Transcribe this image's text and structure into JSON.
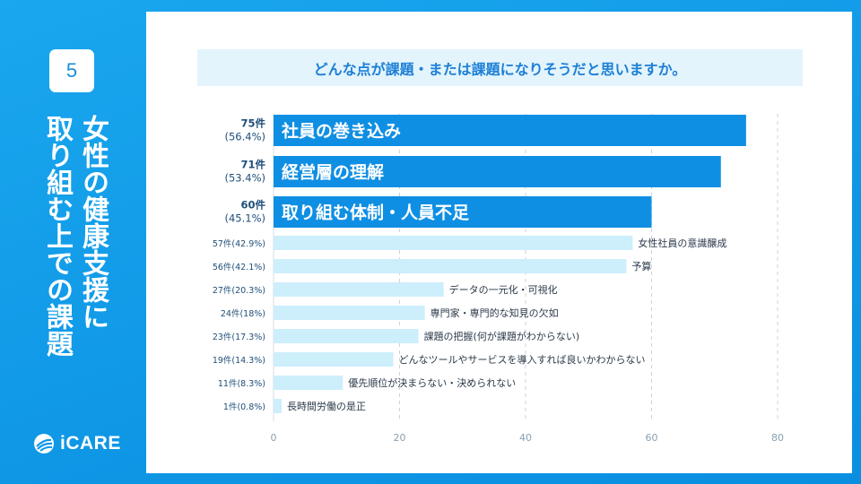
{
  "slide": {
    "number": "5",
    "title_col1": "女性の健康支援に",
    "title_col2": "取り組む上での課題"
  },
  "logo": {
    "text": "iCARE"
  },
  "question": "どんな点が課題・または課題になりそうだと思いますか。",
  "colors": {
    "background": "#0f9ae8",
    "accent_bar": "#0f8fe3",
    "light_bar": "#cdeefb",
    "question_bg": "#e3f4fc",
    "question_text": "#1d7fd6",
    "axis_text": "#8aa0b2",
    "label_text": "#1f4e79"
  },
  "chart_data": {
    "type": "bar",
    "orientation": "horizontal",
    "title": "どんな点が課題・または課題になりそうだと思いますか。",
    "xlim": [
      0,
      80
    ],
    "xticks": [
      0,
      20,
      40,
      60,
      80
    ],
    "grid": true,
    "categories": [
      "社員の巻き込み",
      "経営層の理解",
      "取り組む体制・人員不足",
      "女性社員の意識醸成",
      "予算",
      "データの一元化・可視化",
      "専門家・専門的な知見の欠如",
      "課題の把握(何が課題がわからない)",
      "どんなツールやサービスを導入すれば良いかわからない",
      "優先順位が決まらない・決められない",
      "長時間労働の是正"
    ],
    "values": [
      75,
      71,
      60,
      57,
      56,
      27,
      24,
      23,
      19,
      11,
      1
    ],
    "count_labels": [
      "75件",
      "71件",
      "60件",
      "57件",
      "56件",
      "27件",
      "24件",
      "23件",
      "19件",
      "11件",
      "1件"
    ],
    "percent_labels": [
      "(56.4%)",
      "(53.4%)",
      "(45.1%)",
      "(42.9%)",
      "(42.1%)",
      "(20.3%)",
      "(18%)",
      "(17.3%)",
      "(14.3%)",
      "(8.3%)",
      "(0.8%)"
    ],
    "highlighted_top": 3
  }
}
